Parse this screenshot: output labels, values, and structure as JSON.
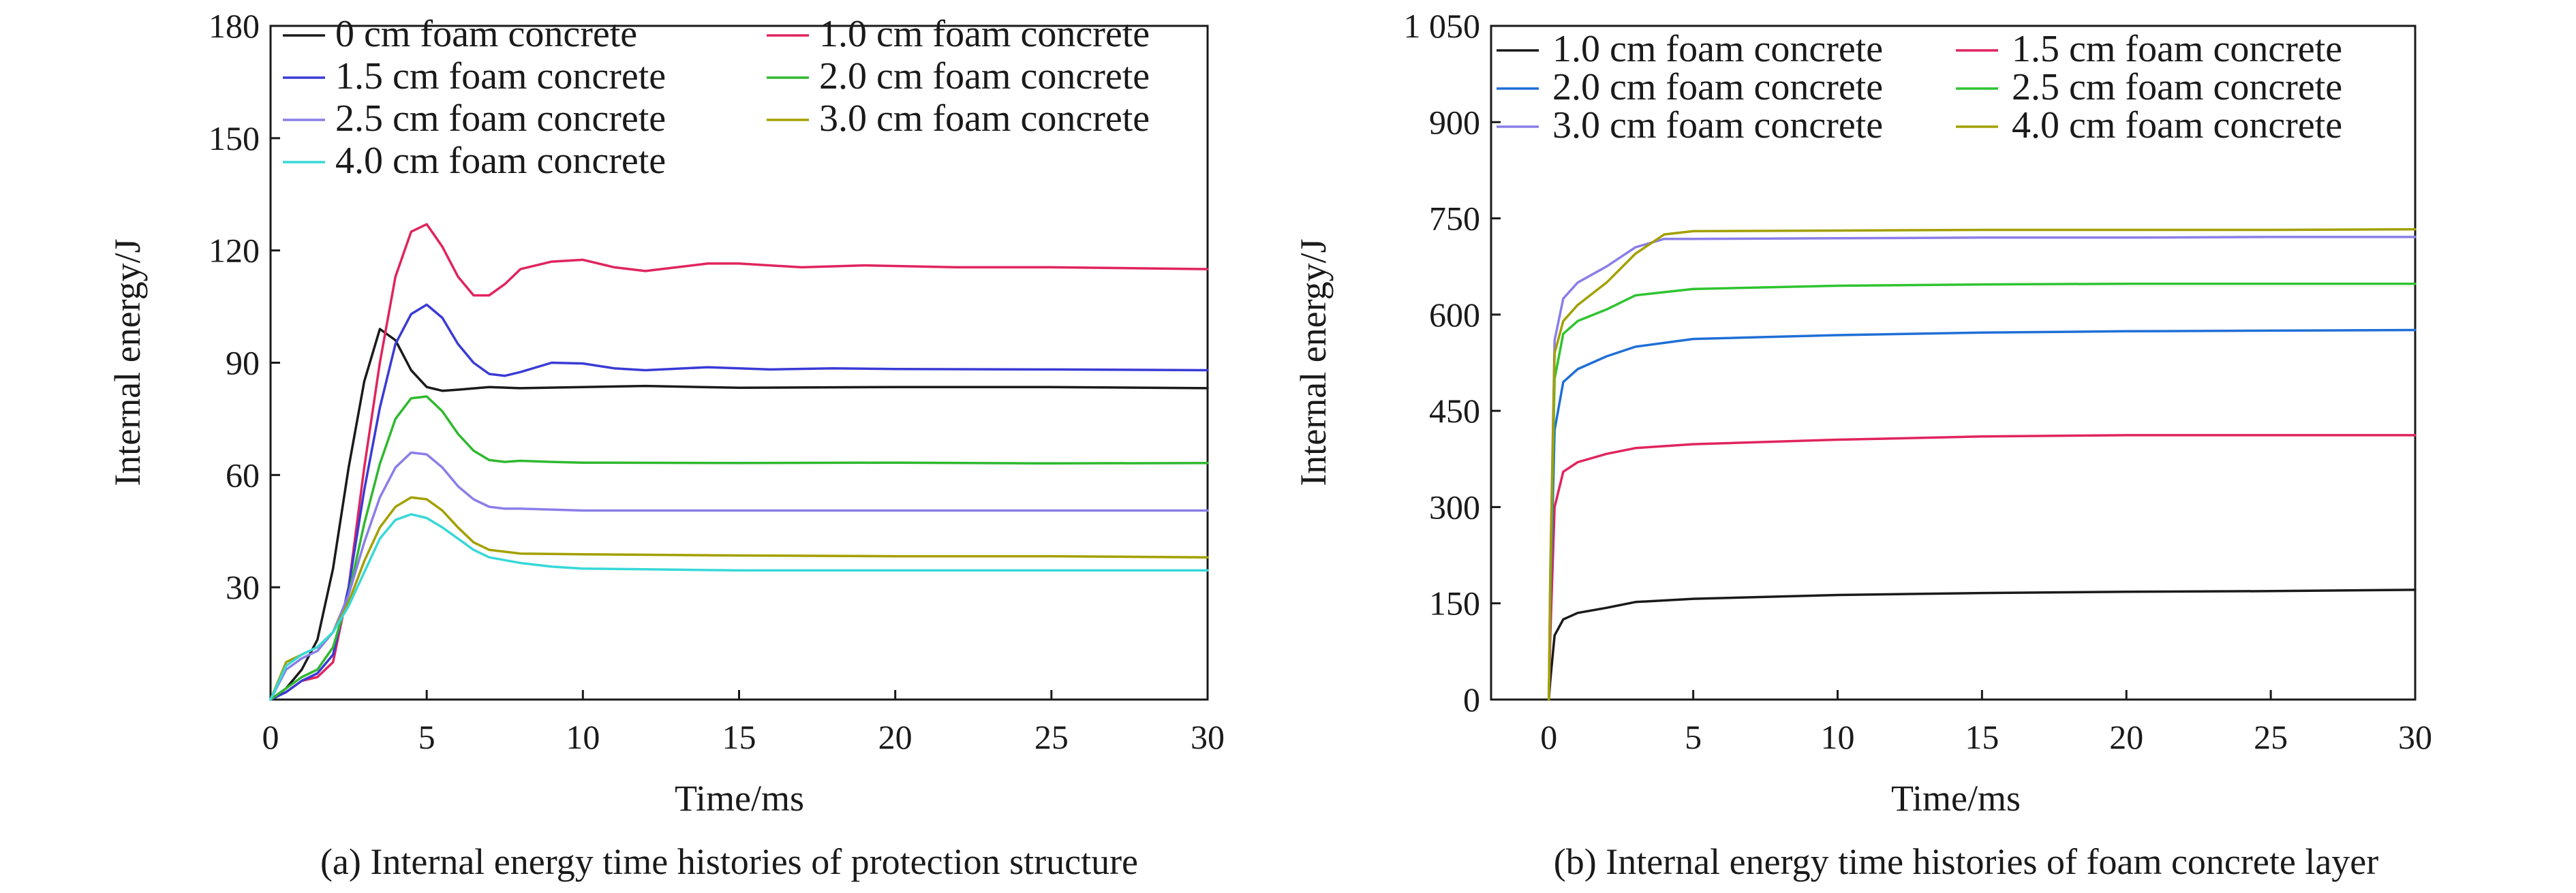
{
  "figure": {
    "caption_a": "(a) Internal energy time histories of protection structure",
    "caption_b": "(b) Internal energy time histories of foam concrete layer"
  },
  "chart_data": [
    {
      "type": "line",
      "xlabel": "Time/ms",
      "ylabel": "Internal energy/J",
      "xlim": [
        0,
        30
      ],
      "ylim": [
        0,
        180
      ],
      "xticks": [
        0,
        5,
        10,
        15,
        20,
        25,
        30
      ],
      "xtick_labels": [
        "0",
        "5",
        "10",
        "15",
        "20",
        "25",
        "30"
      ],
      "yticks": [
        30,
        60,
        90,
        120,
        150,
        180
      ],
      "ytick_labels": [
        "30",
        "60",
        "90",
        "120",
        "150",
        "180"
      ],
      "grid": false,
      "legend_position": "top",
      "legend_columns": 2,
      "series": [
        {
          "name": "0 cm foam concrete",
          "color": "#1a1a1a",
          "x": [
            0,
            0.5,
            1,
            1.5,
            2,
            2.5,
            3,
            3.5,
            4,
            4.5,
            5,
            5.5,
            6,
            7,
            8,
            10,
            12,
            15,
            20,
            25,
            30
          ],
          "y": [
            0,
            3,
            8,
            16,
            35,
            62,
            85,
            99,
            96,
            88,
            83.5,
            82.5,
            82.8,
            83.5,
            83.2,
            83.5,
            83.8,
            83.3,
            83.5,
            83.5,
            83.2
          ]
        },
        {
          "name": "1.0 cm foam concrete",
          "color": "#e0245e",
          "x": [
            0,
            0.5,
            1,
            1.5,
            2,
            2.5,
            3,
            3.5,
            4,
            4.5,
            5,
            5.5,
            6,
            6.5,
            7,
            7.5,
            8,
            9,
            10,
            11,
            12,
            13,
            14,
            15,
            17,
            19,
            22,
            25,
            30
          ],
          "y": [
            0,
            2,
            5,
            6,
            10,
            30,
            62,
            90,
            113,
            125,
            127,
            121,
            113,
            108,
            108,
            111,
            115,
            117,
            117.5,
            115.5,
            114.5,
            115.5,
            116.5,
            116.5,
            115.5,
            116,
            115.5,
            115.5,
            115
          ]
        },
        {
          "name": "1.5 cm foam concrete",
          "color": "#3a3ad6",
          "x": [
            0,
            0.5,
            1,
            1.5,
            2,
            2.5,
            3,
            3.5,
            4,
            4.5,
            5,
            5.5,
            6,
            6.5,
            7,
            7.5,
            8,
            9,
            10,
            11,
            12,
            14,
            16,
            18,
            20,
            25,
            30
          ],
          "y": [
            0,
            2,
            5,
            7,
            12,
            30,
            56,
            78,
            95,
            103,
            105.5,
            102,
            95,
            90,
            87,
            86.5,
            87.5,
            90,
            89.8,
            88.5,
            88,
            88.8,
            88.2,
            88.5,
            88.3,
            88.2,
            88
          ]
        },
        {
          "name": "2.0 cm foam concrete",
          "color": "#2fb82f",
          "x": [
            0,
            0.5,
            1,
            1.5,
            2,
            2.5,
            3,
            3.5,
            4,
            4.5,
            5,
            5.5,
            6,
            6.5,
            7,
            7.5,
            8,
            9,
            10,
            15,
            20,
            25,
            30
          ],
          "y": [
            0,
            3,
            6,
            8,
            14,
            28,
            47,
            63,
            75,
            80.5,
            81,
            77,
            71,
            66.5,
            64,
            63.5,
            63.8,
            63.5,
            63.3,
            63.2,
            63.3,
            63.1,
            63.2
          ]
        },
        {
          "name": "2.5 cm foam concrete",
          "color": "#8a7ee8",
          "x": [
            0,
            0.5,
            1,
            1.5,
            2,
            2.5,
            3,
            3.5,
            4,
            4.5,
            5,
            5.5,
            6,
            6.5,
            7,
            7.5,
            8,
            10,
            15,
            20,
            25,
            30
          ],
          "y": [
            0,
            8,
            11,
            13,
            18,
            28,
            42,
            54,
            62,
            66,
            65.5,
            62,
            57,
            53.5,
            51.5,
            51,
            51,
            50.5,
            50.5,
            50.5,
            50.5,
            50.5
          ]
        },
        {
          "name": "3.0 cm foam concrete",
          "color": "#a3a000",
          "x": [
            0,
            0.5,
            1,
            1.5,
            2,
            2.5,
            3,
            3.5,
            4,
            4.5,
            5,
            5.5,
            6,
            6.5,
            7,
            8,
            10,
            15,
            20,
            25,
            30
          ],
          "y": [
            0,
            10,
            12,
            14,
            18,
            26,
            37,
            46,
            51.5,
            54,
            53.5,
            50.5,
            46,
            42,
            40,
            39,
            38.8,
            38.5,
            38.3,
            38.3,
            38
          ]
        },
        {
          "name": "4.0 cm foam concrete",
          "color": "#37d8d8",
          "x": [
            0,
            0.5,
            1,
            1.5,
            2,
            2.5,
            3,
            3.5,
            4,
            4.5,
            5,
            5.5,
            6,
            6.5,
            7,
            8,
            9,
            10,
            12,
            15,
            20,
            25,
            30
          ],
          "y": [
            0,
            9,
            12,
            14,
            18,
            25,
            34,
            43,
            48,
            49.5,
            48.5,
            46,
            43,
            40,
            38,
            36.5,
            35.5,
            35,
            34.8,
            34.5,
            34.5,
            34.5,
            34.5
          ]
        }
      ]
    },
    {
      "type": "line",
      "xlabel": "Time/ms",
      "ylabel": "Internal energy/J",
      "xlim": [
        -2,
        30
      ],
      "ylim": [
        0,
        1050
      ],
      "xticks": [
        0,
        5,
        10,
        15,
        20,
        25,
        30
      ],
      "xtick_labels": [
        "0",
        "5",
        "10",
        "15",
        "20",
        "25",
        "30"
      ],
      "yticks": [
        0,
        150,
        300,
        450,
        600,
        750,
        900,
        1050
      ],
      "ytick_labels": [
        "0",
        "150",
        "300",
        "450",
        "600",
        "750",
        "900",
        "1 050"
      ],
      "grid": false,
      "legend_position": "top",
      "legend_columns": 2,
      "series": [
        {
          "name": "1.0 cm foam concrete",
          "color": "#1a1a1a",
          "x": [
            0,
            0.05,
            0.2,
            0.5,
            1,
            2,
            3,
            5,
            10,
            15,
            20,
            25,
            30
          ],
          "y": [
            0,
            30,
            100,
            125,
            135,
            143,
            152,
            157,
            163,
            166,
            168,
            169,
            171
          ]
        },
        {
          "name": "1.5 cm foam concrete",
          "color": "#e0245e",
          "x": [
            0,
            0.05,
            0.2,
            0.5,
            1,
            2,
            3,
            5,
            10,
            15,
            20,
            25,
            30
          ],
          "y": [
            0,
            100,
            300,
            355,
            370,
            383,
            392,
            398,
            405,
            410,
            412,
            412,
            412
          ]
        },
        {
          "name": "2.0 cm foam concrete",
          "color": "#1f6fd6",
          "x": [
            0,
            0.05,
            0.2,
            0.5,
            1,
            2,
            3,
            5,
            10,
            15,
            20,
            25,
            30
          ],
          "y": [
            0,
            150,
            420,
            495,
            515,
            535,
            550,
            562,
            568,
            572,
            574,
            575,
            576
          ]
        },
        {
          "name": "2.5 cm foam concrete",
          "color": "#2fc42f",
          "x": [
            0,
            0.05,
            0.2,
            0.5,
            1,
            2,
            3,
            5,
            10,
            15,
            20,
            25,
            30
          ],
          "y": [
            0,
            180,
            500,
            570,
            590,
            608,
            630,
            640,
            645,
            647,
            648,
            648,
            648
          ]
        },
        {
          "name": "3.0 cm foam concrete",
          "color": "#8a7ee8",
          "x": [
            0,
            0.05,
            0.2,
            0.5,
            1,
            2,
            3,
            4,
            5,
            10,
            15,
            20,
            25,
            30
          ],
          "y": [
            0,
            200,
            560,
            625,
            650,
            675,
            705,
            718,
            718,
            719,
            720,
            720,
            721,
            721
          ]
        },
        {
          "name": "4.0 cm foam concrete",
          "color": "#a3a000",
          "x": [
            0,
            0.05,
            0.2,
            0.5,
            1,
            2,
            3,
            4,
            5,
            10,
            15,
            20,
            25,
            30
          ],
          "y": [
            0,
            190,
            540,
            590,
            615,
            650,
            695,
            725,
            730,
            731,
            732,
            732,
            732,
            733
          ]
        }
      ]
    }
  ]
}
